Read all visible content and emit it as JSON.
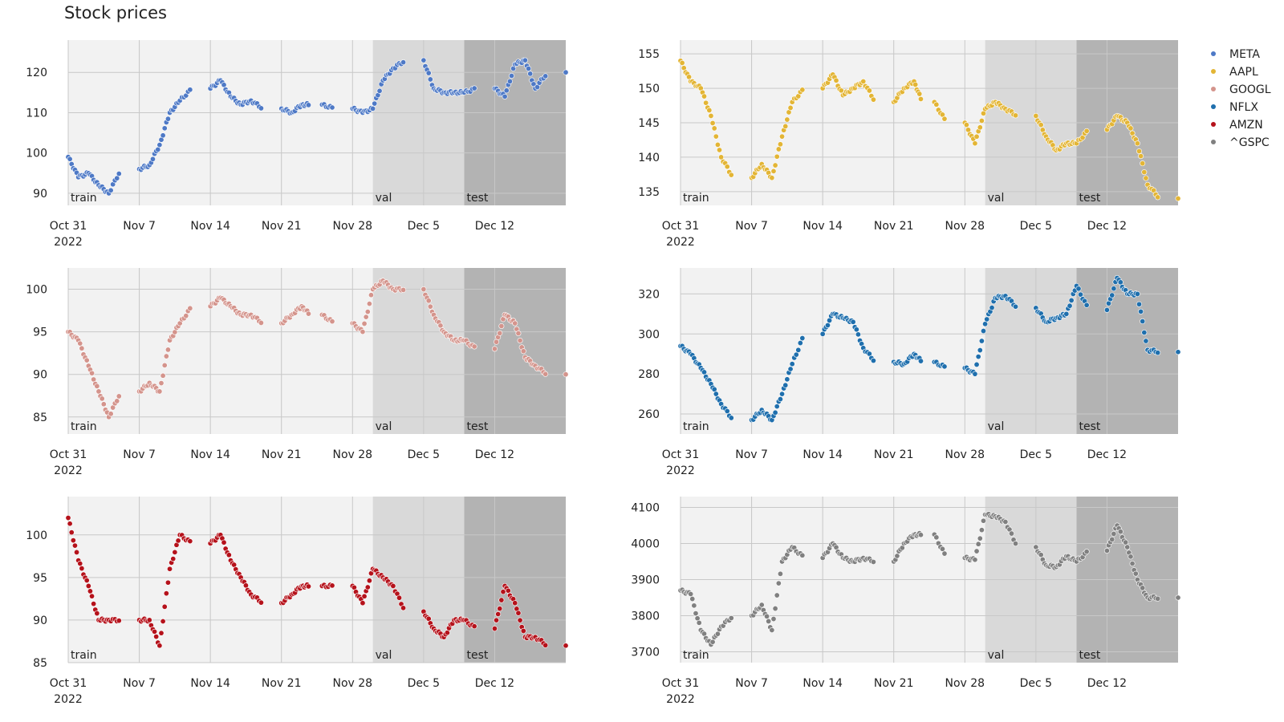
{
  "title": "Stock prices",
  "chart_data": {
    "type": "scatter",
    "title": "Stock prices",
    "x_ticks": [
      "Oct 31",
      "Nov 7",
      "Nov 14",
      "Nov 21",
      "Nov 28",
      "Dec 5",
      "Dec 12"
    ],
    "x_year_label": "2022",
    "x_range": [
      "2022-10-31",
      "2022-12-19"
    ],
    "regions": [
      {
        "label": "train",
        "start": "2022-10-31",
        "end": "2022-11-30",
        "color": "#f2f2f2"
      },
      {
        "label": "val",
        "start": "2022-11-30",
        "end": "2022-12-09",
        "color": "#d9d9d9"
      },
      {
        "label": "test",
        "start": "2022-12-09",
        "end": "2022-12-19",
        "color": "#b3b3b3"
      }
    ],
    "legend": {
      "placement": "top-right",
      "entries": [
        "META",
        "AAPL",
        "GOOGL",
        "NFLX",
        "AMZN",
        "^GSPC"
      ]
    },
    "grid": true,
    "series": [
      {
        "name": "META",
        "color": "#4e79c6",
        "yticks": [
          90,
          100,
          110,
          120
        ],
        "ylim": [
          87,
          128
        ],
        "points": [
          [
            "2022-10-31",
            99
          ],
          [
            "2022-11-01",
            94
          ],
          [
            "2022-11-02",
            95
          ],
          [
            "2022-11-03",
            92
          ],
          [
            "2022-11-04",
            90
          ],
          [
            "2022-11-07",
            96
          ],
          [
            "2022-11-08",
            97
          ],
          [
            "2022-11-09",
            102
          ],
          [
            "2022-11-10",
            110
          ],
          [
            "2022-11-11",
            113
          ],
          [
            "2022-11-14",
            116
          ],
          [
            "2022-11-15",
            118
          ],
          [
            "2022-11-16",
            114
          ],
          [
            "2022-11-17",
            112
          ],
          [
            "2022-11-18",
            113
          ],
          [
            "2022-11-21",
            111
          ],
          [
            "2022-11-22",
            110
          ],
          [
            "2022-11-23",
            112
          ],
          [
            "2022-11-25",
            112
          ],
          [
            "2022-11-28",
            111
          ],
          [
            "2022-11-29",
            110
          ],
          [
            "2022-11-30",
            111
          ],
          [
            "2022-12-01",
            118
          ],
          [
            "2022-12-02",
            121
          ],
          [
            "2022-12-05",
            123
          ],
          [
            "2022-12-06",
            116
          ],
          [
            "2022-12-07",
            115
          ],
          [
            "2022-12-08",
            115
          ],
          [
            "2022-12-09",
            115
          ],
          [
            "2022-12-12",
            116
          ],
          [
            "2022-12-13",
            114
          ],
          [
            "2022-12-14",
            122
          ],
          [
            "2022-12-15",
            123
          ],
          [
            "2022-12-16",
            116
          ],
          [
            "2022-12-19",
            120
          ]
        ]
      },
      {
        "name": "AAPL",
        "color": "#e3b535",
        "yticks": [
          135,
          140,
          145,
          150,
          155
        ],
        "ylim": [
          133,
          157
        ],
        "points": [
          [
            "2022-10-31",
            154
          ],
          [
            "2022-11-01",
            151
          ],
          [
            "2022-11-02",
            150
          ],
          [
            "2022-11-03",
            146
          ],
          [
            "2022-11-04",
            140
          ],
          [
            "2022-11-07",
            137
          ],
          [
            "2022-11-08",
            139
          ],
          [
            "2022-11-09",
            137
          ],
          [
            "2022-11-10",
            143
          ],
          [
            "2022-11-11",
            148
          ],
          [
            "2022-11-14",
            150
          ],
          [
            "2022-11-15",
            152
          ],
          [
            "2022-11-16",
            149
          ],
          [
            "2022-11-17",
            150
          ],
          [
            "2022-11-18",
            151
          ],
          [
            "2022-11-21",
            148
          ],
          [
            "2022-11-22",
            150
          ],
          [
            "2022-11-23",
            151
          ],
          [
            "2022-11-25",
            148
          ],
          [
            "2022-11-28",
            145
          ],
          [
            "2022-11-29",
            142
          ],
          [
            "2022-11-30",
            147
          ],
          [
            "2022-12-01",
            148
          ],
          [
            "2022-12-02",
            147
          ],
          [
            "2022-12-05",
            146
          ],
          [
            "2022-12-06",
            143
          ],
          [
            "2022-12-07",
            141
          ],
          [
            "2022-12-08",
            142
          ],
          [
            "2022-12-09",
            142
          ],
          [
            "2022-12-12",
            144
          ],
          [
            "2022-12-13",
            146
          ],
          [
            "2022-12-14",
            145
          ],
          [
            "2022-12-15",
            142
          ],
          [
            "2022-12-16",
            136
          ],
          [
            "2022-12-19",
            134
          ]
        ]
      },
      {
        "name": "GOOGL",
        "color": "#d4948c",
        "yticks": [
          85,
          90,
          95,
          100
        ],
        "ylim": [
          83,
          102.5
        ],
        "points": [
          [
            "2022-10-31",
            95
          ],
          [
            "2022-11-01",
            94
          ],
          [
            "2022-11-02",
            91
          ],
          [
            "2022-11-03",
            88
          ],
          [
            "2022-11-04",
            85
          ],
          [
            "2022-11-07",
            88
          ],
          [
            "2022-11-08",
            89
          ],
          [
            "2022-11-09",
            88
          ],
          [
            "2022-11-10",
            94
          ],
          [
            "2022-11-11",
            96
          ],
          [
            "2022-11-14",
            98
          ],
          [
            "2022-11-15",
            99
          ],
          [
            "2022-11-16",
            98
          ],
          [
            "2022-11-17",
            97
          ],
          [
            "2022-11-18",
            97
          ],
          [
            "2022-11-21",
            96
          ],
          [
            "2022-11-22",
            97
          ],
          [
            "2022-11-23",
            98
          ],
          [
            "2022-11-25",
            97
          ],
          [
            "2022-11-28",
            96
          ],
          [
            "2022-11-29",
            95
          ],
          [
            "2022-11-30",
            100
          ],
          [
            "2022-12-01",
            101
          ],
          [
            "2022-12-02",
            100
          ],
          [
            "2022-12-05",
            100
          ],
          [
            "2022-12-06",
            97
          ],
          [
            "2022-12-07",
            95
          ],
          [
            "2022-12-08",
            94
          ],
          [
            "2022-12-09",
            94
          ],
          [
            "2022-12-12",
            93
          ],
          [
            "2022-12-13",
            97
          ],
          [
            "2022-12-14",
            96
          ],
          [
            "2022-12-15",
            92
          ],
          [
            "2022-12-16",
            91
          ],
          [
            "2022-12-19",
            90
          ]
        ]
      },
      {
        "name": "NFLX",
        "color": "#1f6fad",
        "yticks": [
          260,
          280,
          300,
          320
        ],
        "ylim": [
          250,
          333
        ],
        "points": [
          [
            "2022-10-31",
            294
          ],
          [
            "2022-11-01",
            290
          ],
          [
            "2022-11-02",
            283
          ],
          [
            "2022-11-03",
            275
          ],
          [
            "2022-11-04",
            265
          ],
          [
            "2022-11-07",
            257
          ],
          [
            "2022-11-08",
            262
          ],
          [
            "2022-11-09",
            257
          ],
          [
            "2022-11-10",
            270
          ],
          [
            "2022-11-11",
            285
          ],
          [
            "2022-11-14",
            300
          ],
          [
            "2022-11-15",
            310
          ],
          [
            "2022-11-16",
            308
          ],
          [
            "2022-11-17",
            306
          ],
          [
            "2022-11-18",
            293
          ],
          [
            "2022-11-21",
            286
          ],
          [
            "2022-11-22",
            285
          ],
          [
            "2022-11-23",
            290
          ],
          [
            "2022-11-25",
            286
          ],
          [
            "2022-11-28",
            283
          ],
          [
            "2022-11-29",
            280
          ],
          [
            "2022-11-30",
            305
          ],
          [
            "2022-12-01",
            318
          ],
          [
            "2022-12-02",
            319
          ],
          [
            "2022-12-05",
            313
          ],
          [
            "2022-12-06",
            306
          ],
          [
            "2022-12-07",
            308
          ],
          [
            "2022-12-08",
            310
          ],
          [
            "2022-12-09",
            324
          ],
          [
            "2022-12-12",
            312
          ],
          [
            "2022-12-13",
            328
          ],
          [
            "2022-12-14",
            320
          ],
          [
            "2022-12-15",
            320
          ],
          [
            "2022-12-16",
            292
          ],
          [
            "2022-12-19",
            291
          ]
        ]
      },
      {
        "name": "AMZN",
        "color": "#b5121b",
        "yticks": [
          85,
          90,
          95,
          100
        ],
        "ylim": [
          85,
          104.5
        ],
        "points": [
          [
            "2022-10-31",
            102
          ],
          [
            "2022-11-01",
            97
          ],
          [
            "2022-11-02",
            94
          ],
          [
            "2022-11-03",
            90
          ],
          [
            "2022-11-04",
            90
          ],
          [
            "2022-11-07",
            90
          ],
          [
            "2022-11-08",
            90
          ],
          [
            "2022-11-09",
            87
          ],
          [
            "2022-11-10",
            96
          ],
          [
            "2022-11-11",
            100
          ],
          [
            "2022-11-14",
            99
          ],
          [
            "2022-11-15",
            100
          ],
          [
            "2022-11-16",
            97
          ],
          [
            "2022-11-17",
            95
          ],
          [
            "2022-11-18",
            93
          ],
          [
            "2022-11-21",
            92
          ],
          [
            "2022-11-22",
            93
          ],
          [
            "2022-11-23",
            94
          ],
          [
            "2022-11-25",
            94
          ],
          [
            "2022-11-28",
            94
          ],
          [
            "2022-11-29",
            92
          ],
          [
            "2022-11-30",
            96
          ],
          [
            "2022-12-01",
            95
          ],
          [
            "2022-12-02",
            94
          ],
          [
            "2022-12-05",
            91
          ],
          [
            "2022-12-06",
            89
          ],
          [
            "2022-12-07",
            88
          ],
          [
            "2022-12-08",
            90
          ],
          [
            "2022-12-09",
            90
          ],
          [
            "2022-12-12",
            89
          ],
          [
            "2022-12-13",
            94
          ],
          [
            "2022-12-14",
            92
          ],
          [
            "2022-12-15",
            88
          ],
          [
            "2022-12-16",
            88
          ],
          [
            "2022-12-19",
            87
          ]
        ]
      },
      {
        "name": "^GSPC",
        "color": "#808080",
        "yticks": [
          3700,
          3800,
          3900,
          4000,
          4100
        ],
        "ylim": [
          3670,
          4130
        ],
        "points": [
          [
            "2022-10-31",
            3870
          ],
          [
            "2022-11-01",
            3860
          ],
          [
            "2022-11-02",
            3760
          ],
          [
            "2022-11-03",
            3720
          ],
          [
            "2022-11-04",
            3770
          ],
          [
            "2022-11-07",
            3800
          ],
          [
            "2022-11-08",
            3830
          ],
          [
            "2022-11-09",
            3760
          ],
          [
            "2022-11-10",
            3950
          ],
          [
            "2022-11-11",
            3990
          ],
          [
            "2022-11-14",
            3960
          ],
          [
            "2022-11-15",
            4000
          ],
          [
            "2022-11-16",
            3960
          ],
          [
            "2022-11-17",
            3950
          ],
          [
            "2022-11-18",
            3960
          ],
          [
            "2022-11-21",
            3950
          ],
          [
            "2022-11-22",
            4000
          ],
          [
            "2022-11-23",
            4025
          ],
          [
            "2022-11-25",
            4025
          ],
          [
            "2022-11-28",
            3960
          ],
          [
            "2022-11-29",
            3955
          ],
          [
            "2022-11-30",
            4080
          ],
          [
            "2022-12-01",
            4075
          ],
          [
            "2022-12-02",
            4060
          ],
          [
            "2022-12-05",
            3990
          ],
          [
            "2022-12-06",
            3940
          ],
          [
            "2022-12-07",
            3935
          ],
          [
            "2022-12-08",
            3965
          ],
          [
            "2022-12-09",
            3950
          ],
          [
            "2022-12-12",
            3980
          ],
          [
            "2022-12-13",
            4050
          ],
          [
            "2022-12-14",
            3990
          ],
          [
            "2022-12-15",
            3900
          ],
          [
            "2022-12-16",
            3850
          ],
          [
            "2022-12-19",
            3850
          ]
        ]
      }
    ]
  }
}
